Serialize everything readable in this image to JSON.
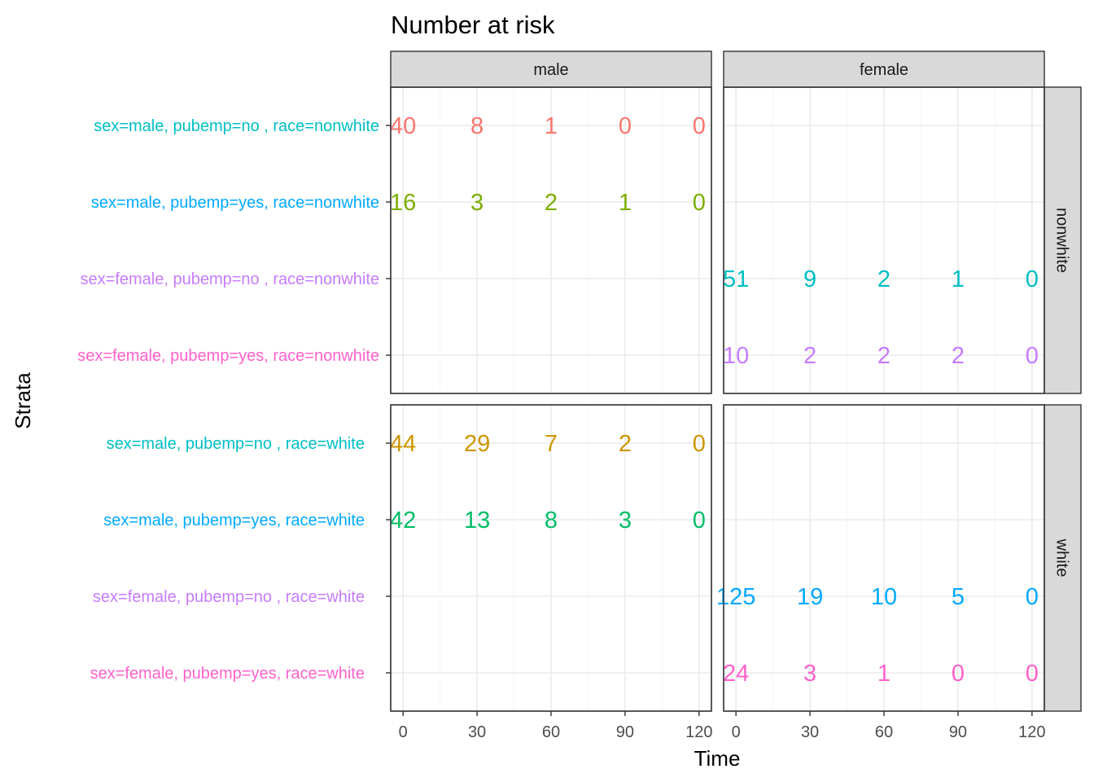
{
  "chart_data": {
    "type": "table",
    "title": "Number at risk",
    "xlabel": "Time",
    "ylabel": "Strata",
    "x_ticks": [
      0,
      30,
      60,
      90,
      120
    ],
    "xlim": [
      -5,
      125
    ],
    "facet_columns": [
      "male",
      "female"
    ],
    "facet_rows": [
      "nonwhite",
      "white"
    ],
    "strata_labels": [
      [
        "sex=male, pubemp=no , race=nonwhite",
        "sex=male, pubemp=yes, race=nonwhite",
        "sex=female, pubemp=no , race=nonwhite",
        "sex=female, pubemp=yes, race=nonwhite"
      ],
      [
        "sex=male, pubemp=no , race=white",
        "sex=male, pubemp=yes, race=white",
        "sex=female, pubemp=no , race=white",
        "sex=female, pubemp=yes, race=white"
      ]
    ],
    "strata_label_colors": [
      "#00BFC4",
      "#00A9FF",
      "#C77CFF",
      "#FF61CC"
    ],
    "series": [
      {
        "sex": "male",
        "pubemp": "no",
        "race": "nonwhite",
        "color": "#F8766D",
        "x": [
          0,
          30,
          60,
          90,
          120
        ],
        "values": [
          40,
          8,
          1,
          0,
          0
        ]
      },
      {
        "sex": "male",
        "pubemp": "yes",
        "race": "nonwhite",
        "color": "#7CAE00",
        "x": [
          0,
          30,
          60,
          90,
          120
        ],
        "values": [
          16,
          3,
          2,
          1,
          0
        ]
      },
      {
        "sex": "female",
        "pubemp": "no",
        "race": "nonwhite",
        "color": "#00BFC4",
        "x": [
          0,
          30,
          60,
          90,
          120
        ],
        "values": [
          51,
          9,
          2,
          1,
          0
        ]
      },
      {
        "sex": "female",
        "pubemp": "yes",
        "race": "nonwhite",
        "color": "#C77CFF",
        "x": [
          0,
          30,
          60,
          90,
          120
        ],
        "values": [
          10,
          2,
          2,
          2,
          0
        ]
      },
      {
        "sex": "male",
        "pubemp": "no",
        "race": "white",
        "color": "#CD9600",
        "x": [
          0,
          30,
          60,
          90,
          120
        ],
        "values": [
          44,
          29,
          7,
          2,
          0
        ]
      },
      {
        "sex": "male",
        "pubemp": "yes",
        "race": "white",
        "color": "#00BE67",
        "x": [
          0,
          30,
          60,
          90,
          120
        ],
        "values": [
          42,
          13,
          8,
          3,
          0
        ]
      },
      {
        "sex": "female",
        "pubemp": "no",
        "race": "white",
        "color": "#00A9FF",
        "x": [
          0,
          30,
          60,
          90,
          120
        ],
        "values": [
          125,
          19,
          10,
          5,
          0
        ]
      },
      {
        "sex": "female",
        "pubemp": "yes",
        "race": "white",
        "color": "#FF61CC",
        "x": [
          0,
          30,
          60,
          90,
          120
        ],
        "values": [
          24,
          3,
          1,
          0,
          0
        ]
      }
    ]
  }
}
